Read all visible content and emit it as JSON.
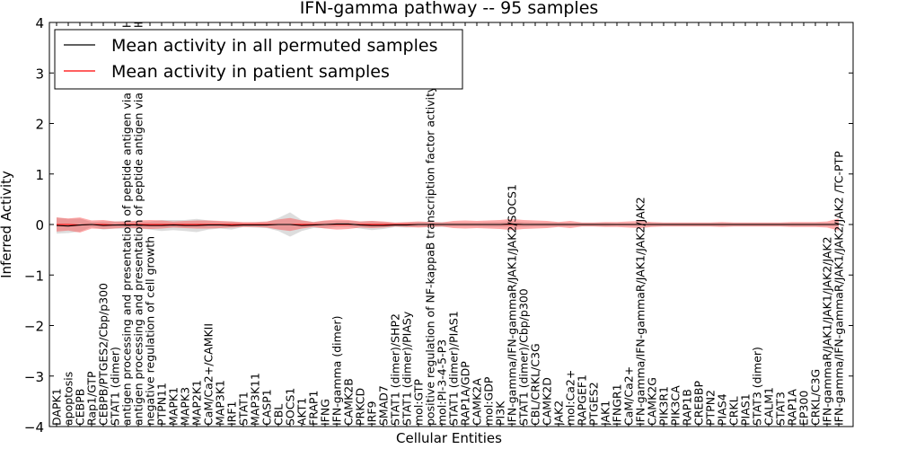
{
  "chart_data": {
    "type": "line",
    "title": "IFN-gamma pathway -- 95 samples",
    "xlabel": "Cellular Entities",
    "ylabel": "Inferred Activity",
    "ylim": [
      -4,
      4
    ],
    "yticks": [
      -4,
      -3,
      -2,
      -1,
      0,
      1,
      2,
      3,
      4
    ],
    "ytick_labels": [
      "−4",
      "−3",
      "−2",
      "−1",
      "0",
      "1",
      "2",
      "3",
      "4"
    ],
    "legend_position": "top-left",
    "categories": [
      "DAPK1",
      "apoptosis",
      "CEBPB",
      "Rap1/GTP",
      "CEBPB/PTGES2/Cbp/p300",
      "STAT1 (dimer)",
      "antigen processing and presentation of peptide antigen via MHC class I",
      "antigen processing and presentation of peptide antigen via MHC class II",
      "negative regulation of cell growth",
      "PTPN11",
      "MAPK1",
      "MAPK3",
      "MAP2K1",
      "CaM/Ca2+/CAMKII",
      "MAP3K1",
      "IRF1",
      "STAT1",
      "MAP3K11",
      "CASP1",
      "CBL",
      "SOCS1",
      "AKT1",
      "FRAP1",
      "IFNG",
      "IFN-gamma (dimer)",
      "CAMK2B",
      "PRKCD",
      "IRF9",
      "SMAD7",
      "STAT1 (dimer)/SHP2",
      "STAT1 (dimer)/PIASy",
      "mol:GTP",
      "positive regulation of NF-kappaB transcription factor activity",
      "mol:PI-3-4-5-P3",
      "STAT1 (dimer)/PIAS1",
      "RAP1A/GDP",
      "CAMK2A",
      "mol:GDP",
      "PI3K",
      "IFN-gamma/IFN-gammaR/JAK1/JAK2/SOCS1",
      "STAT1 (dimer)/Cbp/p300",
      "CBL/CRKL/C3G",
      "CAMK2D",
      "JAK2",
      "mol:Ca2+",
      "RAPGEF1",
      "PTGES2",
      "JAK1",
      "IFNGR1",
      "CaM/Ca2+",
      "IFN-gamma/IFN-gammaR/JAK1/JAK2/JAK2",
      "CAMK2G",
      "PIK3R1",
      "PIK3CA",
      "RAP1B",
      "CREBBP",
      "PTPN2",
      "PIAS4",
      "CRKL",
      "PIAS1",
      "STAT3 (dimer)",
      "CALM1",
      "STAT3",
      "RAP1A",
      "EP300",
      "CRKL/C3G",
      "IFN-gammaR/JAK1/JAK1/JAK2/JAK2",
      "IFN-gamma/IFN-gammaR/JAK1/JAK2/JAK2 /TC-PTP"
    ],
    "series": [
      {
        "name": "Mean activity in all permuted samples",
        "color": "#000000",
        "values": [
          -0.02,
          -0.03,
          -0.01,
          0.0,
          -0.02,
          -0.01,
          -0.01,
          -0.01,
          -0.02,
          -0.02,
          -0.01,
          -0.02,
          -0.02,
          -0.01,
          -0.01,
          -0.02,
          -0.01,
          -0.01,
          -0.01,
          0.0,
          0.0,
          -0.02,
          -0.01,
          0.0,
          0.01,
          0.01,
          -0.01,
          -0.02,
          -0.02,
          -0.01,
          -0.01,
          0.0,
          0.0,
          0.0,
          0.0,
          0.0,
          0.0,
          0.0,
          0.0,
          0.01,
          0.0,
          0.0,
          0.0,
          0.0,
          0.0,
          0.0,
          0.0,
          0.0,
          0.0,
          0.0,
          0.0,
          0.0,
          0.0,
          0.0,
          0.0,
          0.0,
          0.0,
          0.0,
          0.0,
          0.0,
          0.0,
          0.0,
          0.0,
          0.0,
          0.0,
          0.0,
          0.0,
          0.0
        ],
        "band": [
          0.16,
          0.14,
          0.13,
          0.05,
          0.08,
          0.07,
          0.08,
          0.07,
          0.08,
          0.11,
          0.1,
          0.11,
          0.13,
          0.09,
          0.07,
          0.08,
          0.04,
          0.05,
          0.06,
          0.13,
          0.24,
          0.11,
          0.06,
          0.07,
          0.06,
          0.06,
          0.07,
          0.09,
          0.07,
          0.04,
          0.05,
          0.05,
          0.05,
          0.05,
          0.04,
          0.04,
          0.04,
          0.05,
          0.05,
          0.06,
          0.05,
          0.04,
          0.04,
          0.04,
          0.03,
          0.03,
          0.03,
          0.03,
          0.02,
          0.02,
          0.02,
          0.03,
          0.03,
          0.03,
          0.03,
          0.03,
          0.03,
          0.03,
          0.03,
          0.03,
          0.03,
          0.03,
          0.03,
          0.03,
          0.03,
          0.03,
          0.03,
          0.03
        ]
      },
      {
        "name": "Mean activity in patient samples",
        "color": "#ff0000",
        "values": [
          0.0,
          0.0,
          -0.01,
          0.0,
          0.0,
          -0.01,
          0.0,
          0.0,
          0.0,
          0.0,
          0.0,
          0.0,
          0.0,
          0.0,
          0.0,
          0.0,
          0.0,
          0.0,
          0.0,
          0.0,
          0.0,
          0.0,
          0.0,
          0.0,
          0.0,
          0.0,
          0.0,
          0.0,
          0.0,
          0.0,
          0.0,
          0.0,
          0.0,
          0.0,
          0.0,
          0.0,
          0.0,
          0.0,
          0.0,
          0.0,
          0.0,
          0.0,
          0.0,
          0.0,
          0.0,
          0.0,
          0.0,
          0.0,
          0.0,
          0.0,
          0.0,
          0.0,
          0.0,
          0.0,
          0.0,
          0.0,
          0.0,
          0.0,
          0.0,
          0.0,
          0.0,
          0.0,
          0.0,
          0.0,
          0.0,
          0.0,
          0.0,
          0.0
        ],
        "band": [
          0.14,
          0.12,
          0.15,
          0.08,
          0.09,
          0.07,
          0.06,
          0.08,
          0.09,
          0.08,
          0.06,
          0.07,
          0.08,
          0.08,
          0.07,
          0.06,
          0.05,
          0.05,
          0.06,
          0.1,
          0.13,
          0.08,
          0.05,
          0.08,
          0.1,
          0.09,
          0.06,
          0.07,
          0.06,
          0.04,
          0.05,
          0.06,
          0.05,
          0.04,
          0.07,
          0.08,
          0.07,
          0.08,
          0.09,
          0.11,
          0.09,
          0.08,
          0.07,
          0.05,
          0.07,
          0.04,
          0.04,
          0.05,
          0.05,
          0.06,
          0.07,
          0.05,
          0.04,
          0.04,
          0.04,
          0.04,
          0.04,
          0.05,
          0.04,
          0.04,
          0.04,
          0.04,
          0.04,
          0.05,
          0.05,
          0.05,
          0.06,
          0.12
        ]
      }
    ]
  }
}
